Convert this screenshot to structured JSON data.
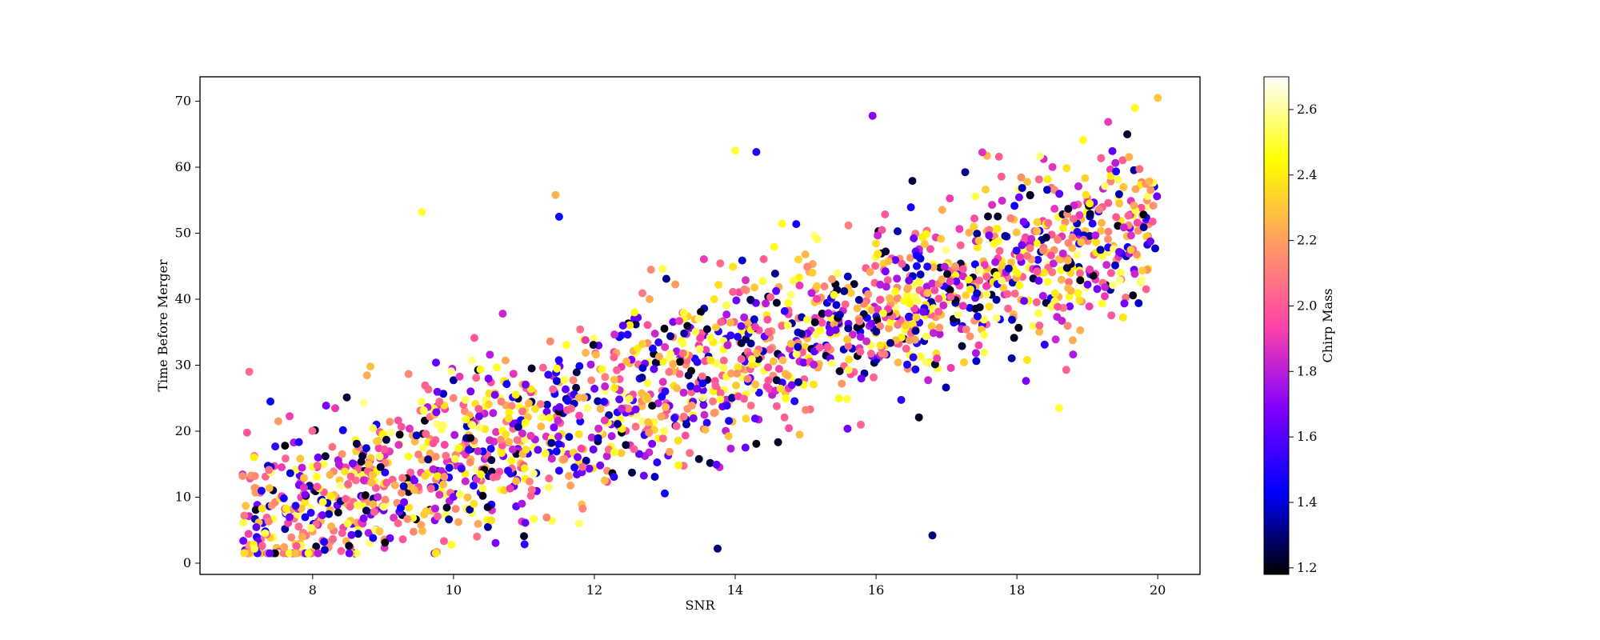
{
  "chart_data": {
    "type": "scatter",
    "xlabel": "SNR",
    "ylabel": "Time Before Merger",
    "colorbar_label": "Chirp Mass",
    "xlim": [
      6.4,
      20.6
    ],
    "ylim": [
      -1.7,
      73.7
    ],
    "xticks": [
      "8",
      "10",
      "12",
      "14",
      "16",
      "18",
      "20"
    ],
    "yticks": [
      "0",
      "10",
      "20",
      "30",
      "40",
      "50",
      "60",
      "70"
    ],
    "colorbar_range": [
      1.18,
      2.7
    ],
    "colorbar_ticks": [
      "1.2",
      "1.4",
      "1.6",
      "1.8",
      "2.0",
      "2.2",
      "2.4",
      "2.6"
    ],
    "colormap": "gnuplot2",
    "colormap_stops": [
      "#000000",
      "#0000ff",
      "#8000ff",
      "#ff44a8",
      "#ff9c63",
      "#ffff00",
      "#ffffff"
    ],
    "grid": false,
    "legend": "none",
    "point_count": 2000,
    "trend": {
      "slope": 3.62,
      "intercept": -20.0
    },
    "notable_points": [
      {
        "x": 7.1,
        "y": 29,
        "c": 2.05
      },
      {
        "x": 7.4,
        "y": 24.5,
        "c": 1.45
      },
      {
        "x": 9.55,
        "y": 53.2,
        "c": 2.5
      },
      {
        "x": 11.5,
        "y": 52.5,
        "c": 1.45
      },
      {
        "x": 11.45,
        "y": 55.8,
        "c": 2.25
      },
      {
        "x": 13.75,
        "y": 2.2,
        "c": 1.3
      },
      {
        "x": 14.0,
        "y": 62.5,
        "c": 2.5
      },
      {
        "x": 14.3,
        "y": 62.3,
        "c": 1.5
      },
      {
        "x": 15.95,
        "y": 67.8,
        "c": 1.7
      },
      {
        "x": 16.8,
        "y": 4.2,
        "c": 1.3
      },
      {
        "x": 18.6,
        "y": 23.5,
        "c": 2.5
      },
      {
        "x": 20.0,
        "y": 70.5,
        "c": 2.3
      }
    ]
  }
}
